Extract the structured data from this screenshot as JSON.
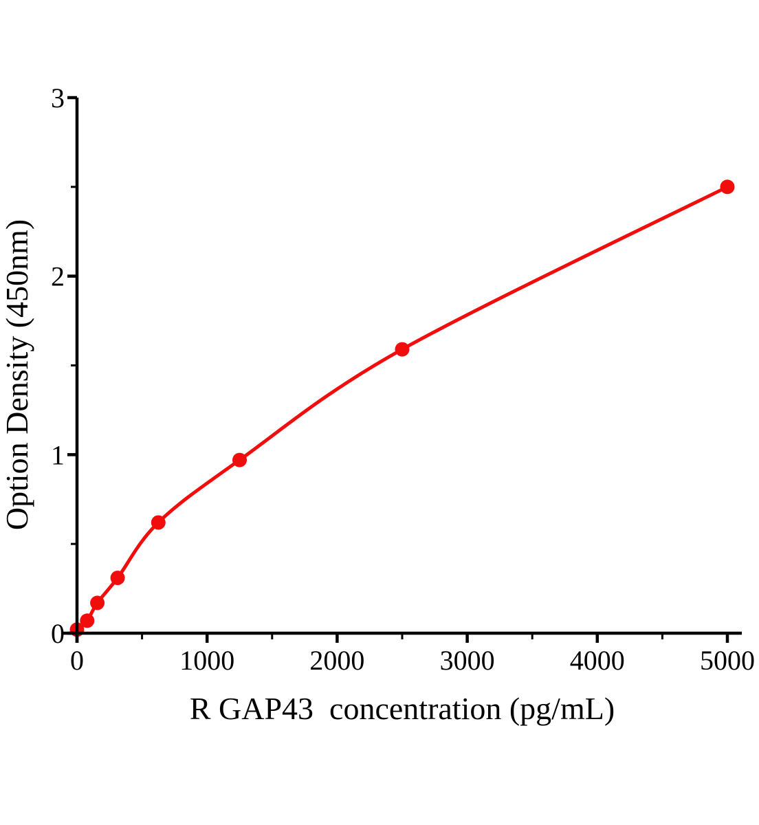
{
  "page": {
    "background_color": "#ffffff",
    "figure_type": "ELISA standard curve plot"
  },
  "chart_data": {
    "type": "line",
    "title": "",
    "xlabel": "R GAP43  concentration（pg/mL）",
    "ylabel": "Option Density（450nm）",
    "x": [
      0,
      78.1,
      156.2,
      312.5,
      625,
      1250,
      2500,
      5000
    ],
    "y": [
      0.02,
      0.07,
      0.17,
      0.31,
      0.62,
      0.97,
      1.59,
      2.5
    ],
    "xlim": [
      0,
      5000
    ],
    "ylim": [
      0,
      3
    ],
    "x_major_ticks": [
      0,
      1000,
      2000,
      3000,
      4000,
      5000
    ],
    "x_tick_labels": [
      "0",
      "1000",
      "2000",
      "3000",
      "4000",
      "5000"
    ],
    "x_minor_ticks": [
      500,
      1500,
      2500,
      3500,
      4500
    ],
    "y_major_ticks": [
      0,
      1,
      2,
      3
    ],
    "y_tick_labels": [
      "0",
      "1",
      "2",
      "3"
    ],
    "y_minor_ticks": [
      0.5,
      1.5,
      2.5
    ],
    "grid": false,
    "legend": null,
    "marker": "circle",
    "line_color": "#f20d0d",
    "marker_color": "#f20d0d",
    "axis_color": "#000000",
    "tick_direction": "out"
  }
}
